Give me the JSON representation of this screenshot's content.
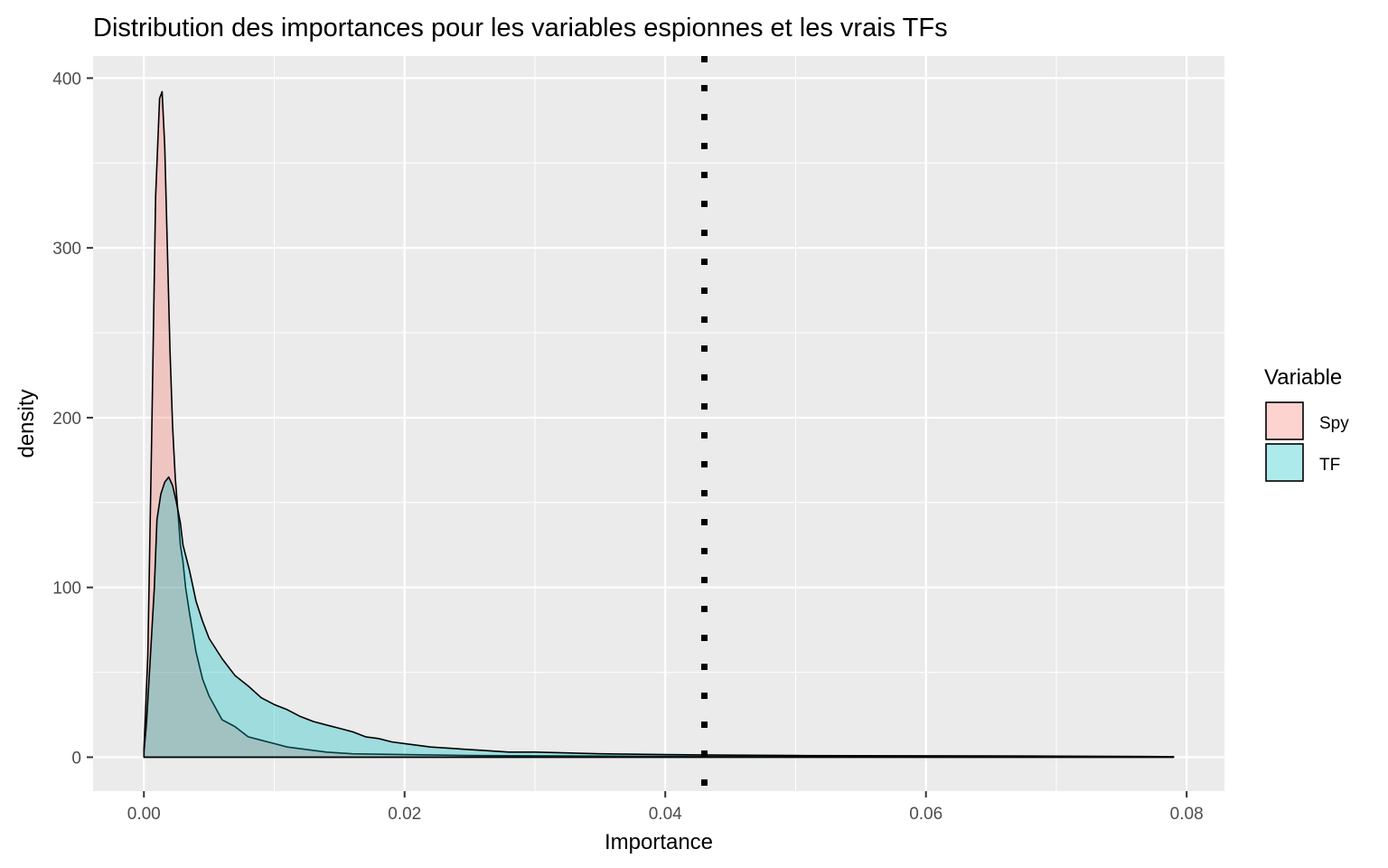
{
  "chart_data": {
    "type": "area",
    "title": "Distribution des importances pour les variables espionnes et les vrais TFs",
    "xlabel": "Importance",
    "ylabel": "density",
    "xlim": [
      -0.0039,
      0.0829
    ],
    "ylim": [
      -20,
      413
    ],
    "x_ticks": [
      0.0,
      0.02,
      0.04,
      0.06,
      0.08
    ],
    "x_tick_labels": [
      "0.00",
      "0.02",
      "0.04",
      "0.06",
      "0.08"
    ],
    "y_ticks": [
      0,
      100,
      200,
      300,
      400
    ],
    "y_tick_labels": [
      "0",
      "100",
      "200",
      "300",
      "400"
    ],
    "grid": true,
    "legend": {
      "title": "Variable",
      "position": "right"
    },
    "vline": {
      "x": 0.043,
      "style": "dotted",
      "color": "#000000"
    },
    "series": [
      {
        "name": "Spy",
        "fill": "#F8766D",
        "points": [
          [
            0.0,
            5
          ],
          [
            0.0003,
            60
          ],
          [
            0.0006,
            190
          ],
          [
            0.0009,
            330
          ],
          [
            0.0012,
            388
          ],
          [
            0.0014,
            392
          ],
          [
            0.0016,
            360
          ],
          [
            0.0018,
            300
          ],
          [
            0.002,
            240
          ],
          [
            0.0022,
            195
          ],
          [
            0.0024,
            165
          ],
          [
            0.0026,
            145
          ],
          [
            0.0028,
            125
          ],
          [
            0.003,
            115
          ],
          [
            0.0032,
            100
          ],
          [
            0.0035,
            85
          ],
          [
            0.004,
            62
          ],
          [
            0.0045,
            46
          ],
          [
            0.005,
            36
          ],
          [
            0.006,
            22
          ],
          [
            0.007,
            18
          ],
          [
            0.008,
            12
          ],
          [
            0.009,
            10
          ],
          [
            0.01,
            8
          ],
          [
            0.011,
            6
          ],
          [
            0.012,
            5
          ],
          [
            0.014,
            3
          ],
          [
            0.016,
            2
          ],
          [
            0.02,
            1.5
          ],
          [
            0.025,
            1
          ],
          [
            0.03,
            0.8
          ],
          [
            0.04,
            0.5
          ],
          [
            0.05,
            0.4
          ],
          [
            0.06,
            0.3
          ],
          [
            0.07,
            0.3
          ],
          [
            0.079,
            0.2
          ]
        ]
      },
      {
        "name": "TF",
        "fill": "#00BFC4",
        "points": [
          [
            0.0,
            3
          ],
          [
            0.0002,
            20
          ],
          [
            0.0005,
            60
          ],
          [
            0.0008,
            100
          ],
          [
            0.001,
            140
          ],
          [
            0.0013,
            155
          ],
          [
            0.0016,
            162
          ],
          [
            0.0019,
            165
          ],
          [
            0.0022,
            160
          ],
          [
            0.0025,
            150
          ],
          [
            0.0028,
            138
          ],
          [
            0.003,
            125
          ],
          [
            0.0035,
            110
          ],
          [
            0.004,
            92
          ],
          [
            0.0045,
            80
          ],
          [
            0.005,
            70
          ],
          [
            0.006,
            58
          ],
          [
            0.007,
            48
          ],
          [
            0.008,
            42
          ],
          [
            0.009,
            35
          ],
          [
            0.01,
            31
          ],
          [
            0.011,
            28
          ],
          [
            0.012,
            24
          ],
          [
            0.013,
            21
          ],
          [
            0.014,
            19
          ],
          [
            0.015,
            17
          ],
          [
            0.016,
            15
          ],
          [
            0.017,
            12
          ],
          [
            0.018,
            11
          ],
          [
            0.019,
            9
          ],
          [
            0.02,
            8
          ],
          [
            0.022,
            6
          ],
          [
            0.024,
            5
          ],
          [
            0.026,
            4
          ],
          [
            0.028,
            3
          ],
          [
            0.03,
            3
          ],
          [
            0.035,
            2
          ],
          [
            0.04,
            1.5
          ],
          [
            0.045,
            1.2
          ],
          [
            0.05,
            1
          ],
          [
            0.055,
            0.9
          ],
          [
            0.06,
            0.8
          ],
          [
            0.065,
            0.7
          ],
          [
            0.07,
            0.6
          ],
          [
            0.075,
            0.5
          ],
          [
            0.079,
            0.3
          ]
        ]
      }
    ]
  }
}
